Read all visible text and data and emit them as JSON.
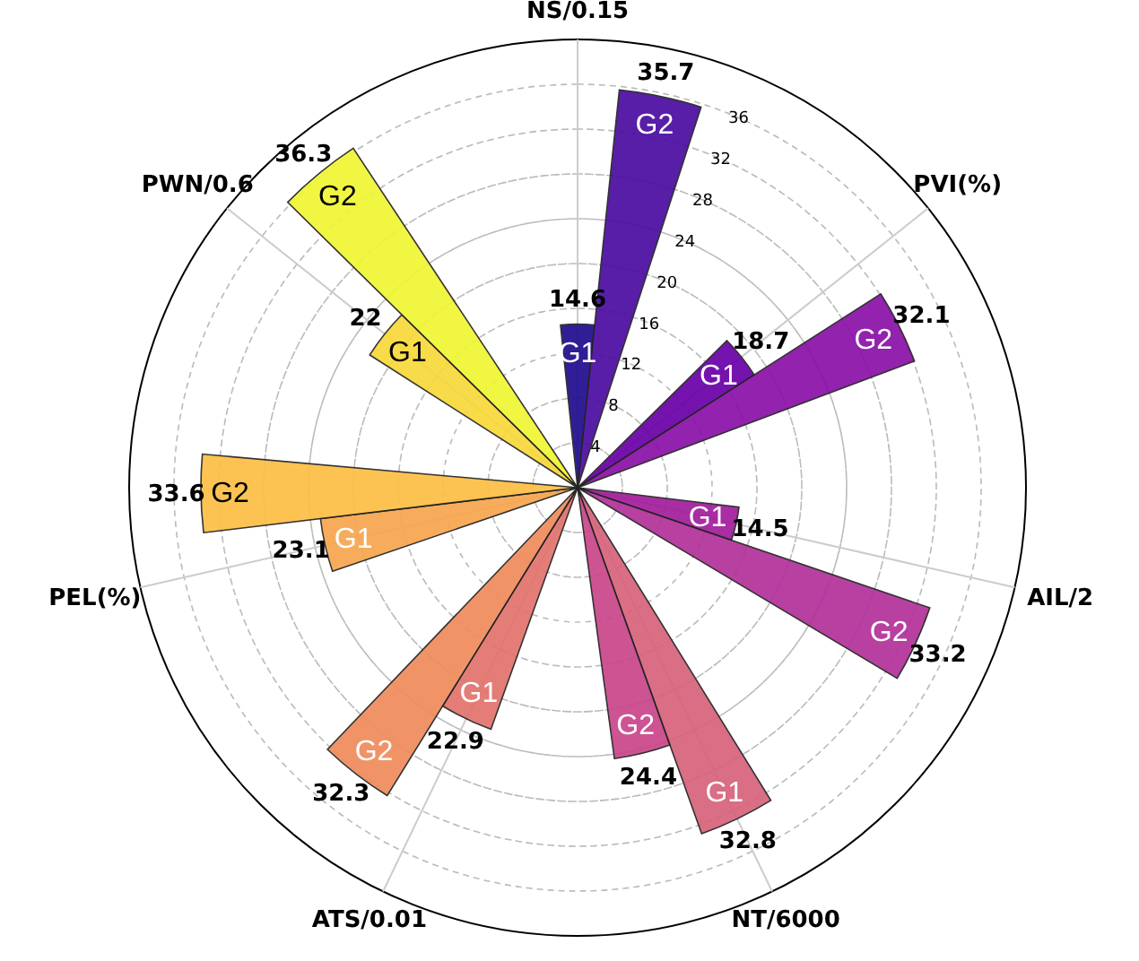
{
  "chart_data": {
    "type": "other",
    "categories": [
      "NS/0.15",
      "PVI(%)",
      "AIL/2",
      "NT/6000",
      "ATS/0.01",
      "PEL(%)",
      "PWN/0.6"
    ],
    "series": [
      {
        "name": "G1",
        "values": [
          14.6,
          18.7,
          14.5,
          32.8,
          22.9,
          23.1,
          22
        ],
        "colors": [
          "#1f0c8f",
          "#6a00a8",
          "#a21c9c",
          "#d6627a",
          "#e2726c",
          "#f7a64e",
          "#f7d83a"
        ]
      },
      {
        "name": "G2",
        "values": [
          35.7,
          32.1,
          33.2,
          24.4,
          32.3,
          33.6,
          36.3
        ],
        "colors": [
          "#4a0ca0",
          "#8a10a8",
          "#b2309a",
          "#c9458a",
          "#ef8c5c",
          "#fdbe44",
          "#f0f633"
        ]
      }
    ],
    "annotations": [
      "4",
      "8",
      "12",
      "16",
      "20",
      "24",
      "28",
      "32",
      "36"
    ],
    "data_labels": true
  }
}
